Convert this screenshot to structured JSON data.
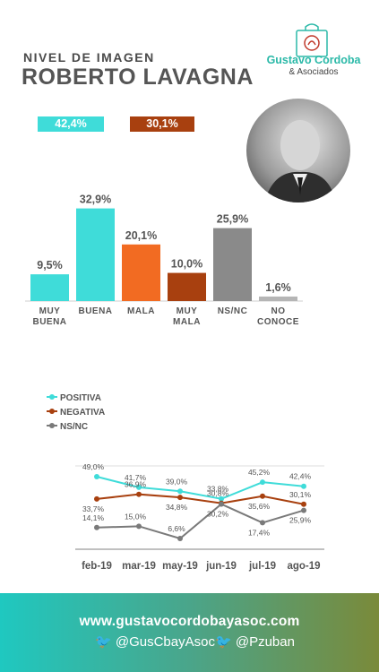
{
  "header": {
    "subtitle": "NIVEL DE IMAGEN",
    "title": "ROBERTO LAVAGNA"
  },
  "logo": {
    "name": "Gustavo Córdoba",
    "sub": "& Asociados"
  },
  "summary": {
    "positive": "42,4%",
    "negative": "30,1%"
  },
  "photo": {
    "subject": "portrait-photo"
  },
  "colors": {
    "turquoise": "#3fdcd9",
    "orange": "#f26b22",
    "brown": "#a8400f",
    "gray": "#8a8a8a",
    "lightgray": "#b5b5b5"
  },
  "chart_data": [
    {
      "type": "bar",
      "categories": [
        "MUY BUENA",
        "BUENA",
        "MALA",
        "MUY MALA",
        "NS/NC",
        "NO CONOCE"
      ],
      "values": [
        9.5,
        32.9,
        20.1,
        10.0,
        25.9,
        1.6
      ],
      "value_labels": [
        "9,5%",
        "32,9%",
        "20,1%",
        "10,0%",
        "25,9%",
        "1,6%"
      ],
      "colors": [
        "#3fdcd9",
        "#3fdcd9",
        "#f26b22",
        "#a8400f",
        "#8a8a8a",
        "#b5b5b5"
      ],
      "ylim": [
        0,
        35
      ]
    },
    {
      "type": "line",
      "x": [
        "feb-19",
        "mar-19",
        "may-19",
        "jun-19",
        "jul-19",
        "ago-19"
      ],
      "series": [
        {
          "name": "POSITIVA",
          "color": "#3fdcd9",
          "values": [
            49.0,
            41.7,
            39.0,
            33.8,
            45.2,
            42.4
          ],
          "labels": [
            "49,0%",
            "41,7%",
            "39,0%",
            "33,8%",
            "45,2%",
            "42,4%"
          ]
        },
        {
          "name": "NEGATIVA",
          "color": "#a8400f",
          "values": [
            33.7,
            36.9,
            34.8,
            30.8,
            35.6,
            30.1
          ],
          "labels": [
            "33,7%",
            "36,9%",
            "34,8%",
            "30,8%",
            "35,6%",
            "30,1%"
          ]
        },
        {
          "name": "NS/NC",
          "color": "#7a7a7a",
          "values": [
            14.1,
            15.0,
            6.6,
            30.2,
            17.4,
            25.9
          ],
          "labels": [
            "14,1%",
            "15,0%",
            "6,6%",
            "30,2%",
            "17,4%",
            "25,9%"
          ]
        }
      ],
      "legend": "top-left"
    }
  ],
  "footer": {
    "url": "www.gustavocordobayasoc.com",
    "twitter1": "@GusCbayAsoc",
    "twitter2": "@Pzuban"
  }
}
